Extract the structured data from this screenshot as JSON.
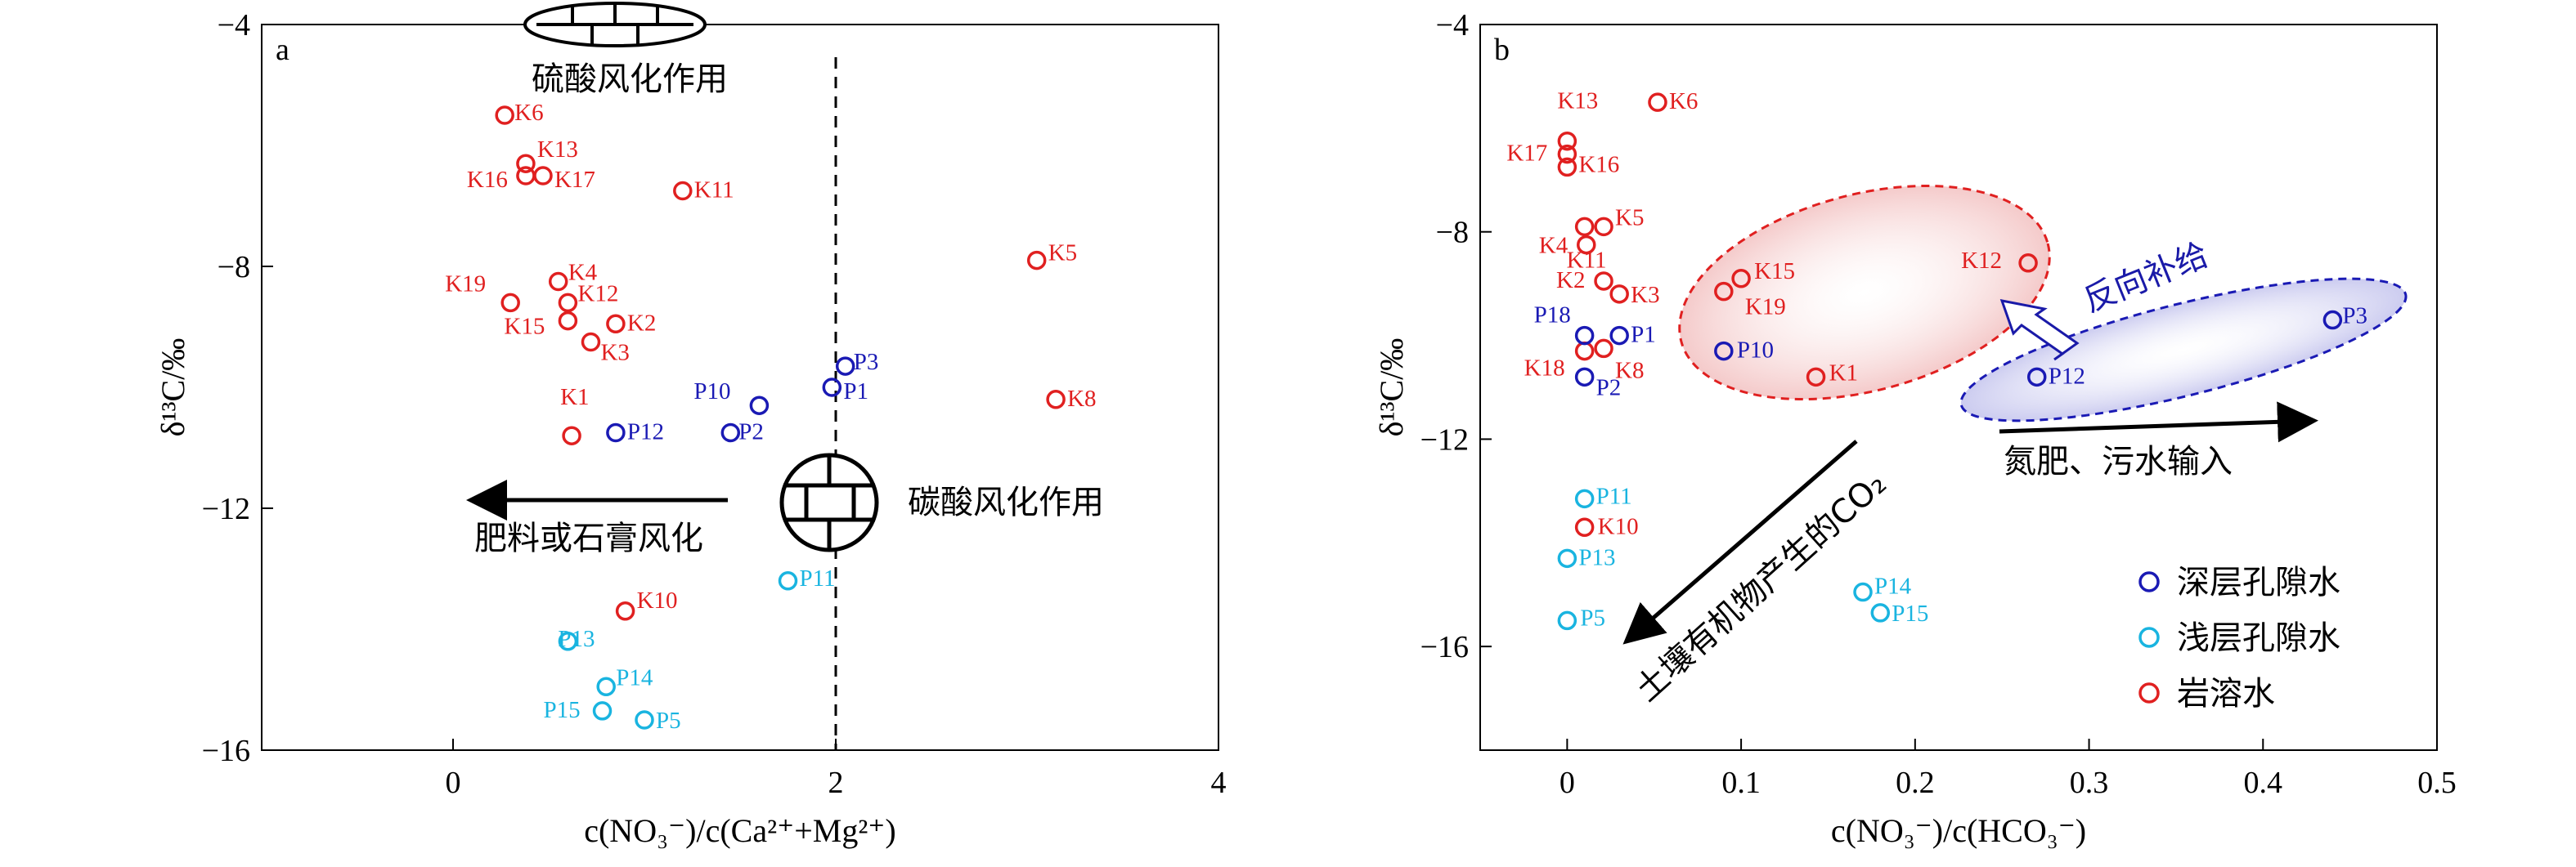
{
  "colors": {
    "deep": "#1a1ab4",
    "shallow": "#19b4e0",
    "karst": "#e02020"
  },
  "chart_data": [
    {
      "type": "scatter",
      "panel_letter": "a",
      "xlabel": "c(NO₃⁻)/c(Ca²⁺+Mg²⁺)",
      "ylabel": "δ¹³C/‰",
      "xlim": [
        -1,
        4
      ],
      "ylim": [
        -16,
        -4
      ],
      "x_ticks": [
        "0",
        "2",
        "4"
      ],
      "y_ticks": [
        "−4",
        "−8",
        "−12",
        "−16"
      ],
      "ref_line_x": 2,
      "annotations": {
        "sulfuric": "硫酸风化作用",
        "carbonic": "碳酸风化作用",
        "fertilizer": "肥料或石膏风化"
      },
      "points": [
        {
          "label": "K6",
          "x": 0.27,
          "y": -5.5,
          "group": "karst"
        },
        {
          "label": "K13",
          "x": 0.38,
          "y": -6.3,
          "group": "karst"
        },
        {
          "label": "K16",
          "x": 0.38,
          "y": -6.5,
          "group": "karst"
        },
        {
          "label": "K17",
          "x": 0.47,
          "y": -6.5,
          "group": "karst"
        },
        {
          "label": "K11",
          "x": 1.2,
          "y": -6.75,
          "group": "karst"
        },
        {
          "label": "K19",
          "x": 0.3,
          "y": -8.6,
          "group": "karst"
        },
        {
          "label": "K4",
          "x": 0.55,
          "y": -8.25,
          "group": "karst"
        },
        {
          "label": "K12",
          "x": 0.6,
          "y": -8.6,
          "group": "karst"
        },
        {
          "label": "K15",
          "x": 0.6,
          "y": -8.9,
          "group": "karst"
        },
        {
          "label": "K2",
          "x": 0.85,
          "y": -8.95,
          "group": "karst"
        },
        {
          "label": "K3",
          "x": 0.72,
          "y": -9.25,
          "group": "karst"
        },
        {
          "label": "K5",
          "x": 3.05,
          "y": -7.9,
          "group": "karst"
        },
        {
          "label": "K8",
          "x": 3.15,
          "y": -10.2,
          "group": "karst"
        },
        {
          "label": "K1",
          "x": 0.62,
          "y": -10.8,
          "group": "karst"
        },
        {
          "label": "K10",
          "x": 0.9,
          "y": -13.7,
          "group": "karst"
        },
        {
          "label": "P3",
          "x": 2.05,
          "y": -9.65,
          "group": "deep"
        },
        {
          "label": "P1",
          "x": 1.98,
          "y": -10.0,
          "group": "deep"
        },
        {
          "label": "P10",
          "x": 1.6,
          "y": -10.3,
          "group": "deep"
        },
        {
          "label": "P2",
          "x": 1.45,
          "y": -10.75,
          "group": "deep"
        },
        {
          "label": "P12",
          "x": 0.85,
          "y": -10.75,
          "group": "deep"
        },
        {
          "label": "P11",
          "x": 1.75,
          "y": -13.2,
          "group": "shallow"
        },
        {
          "label": "P13",
          "x": 0.6,
          "y": -14.2,
          "group": "shallow"
        },
        {
          "label": "P14",
          "x": 0.8,
          "y": -14.95,
          "group": "shallow"
        },
        {
          "label": "P15",
          "x": 0.78,
          "y": -15.35,
          "group": "shallow"
        },
        {
          "label": "P5",
          "x": 1.0,
          "y": -15.5,
          "group": "shallow"
        }
      ]
    },
    {
      "type": "scatter",
      "panel_letter": "b",
      "xlabel": "c(NO₃⁻)/c(HCO₃⁻)",
      "ylabel": "δ¹³C/‰",
      "xlim": [
        -0.05,
        0.5
      ],
      "ylim": [
        -18,
        -4
      ],
      "x_ticks": [
        "0",
        "0.1",
        "0.2",
        "0.3",
        "0.4",
        "0.5"
      ],
      "y_ticks": [
        "−4",
        "−8",
        "−12",
        "−16"
      ],
      "annotations": {
        "recharge": "反向补给",
        "fertilizer": "氮肥、污水输入",
        "soil": "土壤有机物产生的CO₂"
      },
      "legend": [
        {
          "label": "深层孔隙水",
          "group": "deep"
        },
        {
          "label": "浅层孔隙水",
          "group": "shallow"
        },
        {
          "label": "岩溶水",
          "group": "karst"
        }
      ],
      "points": [
        {
          "label": "K6",
          "x": 0.052,
          "y": -5.5,
          "group": "karst"
        },
        {
          "label": "K13",
          "x": 0.0,
          "y": -6.25,
          "group": "karst"
        },
        {
          "label": "K17",
          "x": 0.0,
          "y": -6.5,
          "group": "karst"
        },
        {
          "label": "K16",
          "x": 0.0,
          "y": -6.75,
          "group": "karst"
        },
        {
          "label": "K11",
          "x": 0.01,
          "y": -7.9,
          "group": "karst"
        },
        {
          "label": "K5",
          "x": 0.021,
          "y": -7.9,
          "group": "karst"
        },
        {
          "label": "K4",
          "x": 0.011,
          "y": -8.25,
          "group": "karst"
        },
        {
          "label": "K2",
          "x": 0.021,
          "y": -8.95,
          "group": "karst"
        },
        {
          "label": "K3",
          "x": 0.03,
          "y": -9.2,
          "group": "karst"
        },
        {
          "label": "K15",
          "x": 0.1,
          "y": -8.9,
          "group": "karst"
        },
        {
          "label": "K19",
          "x": 0.09,
          "y": -9.15,
          "group": "karst"
        },
        {
          "label": "K12",
          "x": 0.265,
          "y": -8.6,
          "group": "karst"
        },
        {
          "label": "K18",
          "x": 0.01,
          "y": -10.3,
          "group": "karst"
        },
        {
          "label": "K8",
          "x": 0.021,
          "y": -10.25,
          "group": "karst"
        },
        {
          "label": "K1",
          "x": 0.143,
          "y": -10.8,
          "group": "karst"
        },
        {
          "label": "K10",
          "x": 0.01,
          "y": -13.7,
          "group": "karst"
        },
        {
          "label": "P18",
          "x": 0.01,
          "y": -10.0,
          "group": "deep"
        },
        {
          "label": "P1",
          "x": 0.03,
          "y": -10.0,
          "group": "deep"
        },
        {
          "label": "P10",
          "x": 0.09,
          "y": -10.3,
          "group": "deep"
        },
        {
          "label": "P2",
          "x": 0.01,
          "y": -10.8,
          "group": "deep"
        },
        {
          "label": "P12",
          "x": 0.27,
          "y": -10.8,
          "group": "deep"
        },
        {
          "label": "P3",
          "x": 0.44,
          "y": -9.7,
          "group": "deep"
        },
        {
          "label": "P11",
          "x": 0.01,
          "y": -13.15,
          "group": "shallow"
        },
        {
          "label": "P13",
          "x": 0.0,
          "y": -14.3,
          "group": "shallow"
        },
        {
          "label": "P5",
          "x": 0.0,
          "y": -15.5,
          "group": "shallow"
        },
        {
          "label": "P14",
          "x": 0.17,
          "y": -14.95,
          "group": "shallow"
        },
        {
          "label": "P15",
          "x": 0.18,
          "y": -15.35,
          "group": "shallow"
        }
      ]
    }
  ]
}
